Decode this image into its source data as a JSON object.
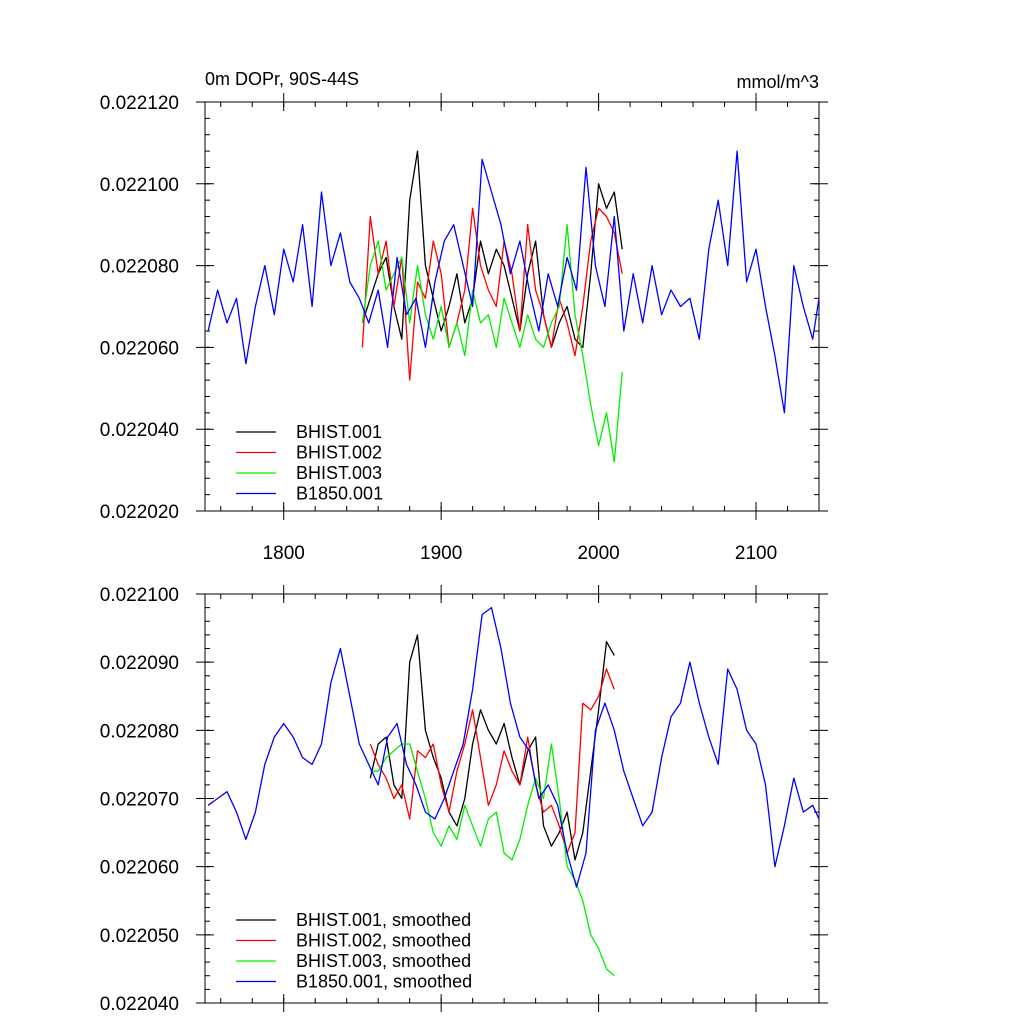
{
  "chart_data": [
    {
      "type": "line",
      "title_left": "0m DOPr, 90S-44S",
      "title_right": "mmol/m^3",
      "xlim": [
        1750,
        2140
      ],
      "ylim": [
        0.02202,
        0.02212
      ],
      "xticks": [
        1800,
        1900,
        2000,
        2100
      ],
      "xtick_labels": [
        "1800",
        "1900",
        "2000",
        "2100"
      ],
      "yticks": [
        0.02202,
        0.02204,
        0.02206,
        0.02208,
        0.0221,
        0.02212
      ],
      "ytick_labels": [
        "0.022020",
        "0.022040",
        "0.022060",
        "0.022080",
        "0.022100",
        "0.022120"
      ],
      "grid": false,
      "legend_position": "bottom-left",
      "series": [
        {
          "name": "BHIST.001",
          "color": "#000000",
          "x": [
            1850,
            1855,
            1860,
            1865,
            1870,
            1875,
            1880,
            1885,
            1890,
            1895,
            1900,
            1905,
            1910,
            1915,
            1920,
            1925,
            1930,
            1935,
            1940,
            1945,
            1950,
            1955,
            1960,
            1965,
            1970,
            1975,
            1980,
            1985,
            1990,
            1995,
            2000,
            2005,
            2010,
            2015
          ],
          "y": [
            0.022066,
            0.022072,
            0.022078,
            0.022082,
            0.02207,
            0.022062,
            0.022096,
            0.022108,
            0.02208,
            0.022072,
            0.022064,
            0.02207,
            0.022078,
            0.022066,
            0.022072,
            0.022086,
            0.022078,
            0.022084,
            0.02208,
            0.022072,
            0.022064,
            0.022078,
            0.022086,
            0.022068,
            0.02206,
            0.022066,
            0.02207,
            0.022062,
            0.02206,
            0.022078,
            0.0221,
            0.022094,
            0.022098,
            0.022084
          ]
        },
        {
          "name": "BHIST.002",
          "color": "#ff0000",
          "x": [
            1850,
            1855,
            1860,
            1865,
            1870,
            1875,
            1880,
            1885,
            1890,
            1895,
            1900,
            1905,
            1910,
            1915,
            1920,
            1925,
            1930,
            1935,
            1940,
            1945,
            1950,
            1955,
            1960,
            1965,
            1970,
            1975,
            1980,
            1985,
            1990,
            1995,
            2000,
            2005,
            2010,
            2015
          ],
          "y": [
            0.02206,
            0.022092,
            0.022078,
            0.022086,
            0.02207,
            0.022082,
            0.022052,
            0.022076,
            0.022072,
            0.022086,
            0.022078,
            0.02206,
            0.022066,
            0.022074,
            0.022094,
            0.02208,
            0.022074,
            0.02207,
            0.022086,
            0.022078,
            0.022064,
            0.02209,
            0.022074,
            0.022068,
            0.02206,
            0.022072,
            0.022066,
            0.022058,
            0.02207,
            0.022086,
            0.022094,
            0.022092,
            0.022088,
            0.022078
          ]
        },
        {
          "name": "BHIST.003",
          "color": "#00ee00",
          "x": [
            1850,
            1855,
            1860,
            1865,
            1870,
            1875,
            1880,
            1885,
            1890,
            1895,
            1900,
            1905,
            1910,
            1915,
            1920,
            1925,
            1930,
            1935,
            1940,
            1945,
            1950,
            1955,
            1960,
            1965,
            1970,
            1975,
            1980,
            1985,
            1990,
            1995,
            2000,
            2005,
            2010,
            2015
          ],
          "y": [
            0.022066,
            0.02208,
            0.022086,
            0.022074,
            0.022078,
            0.022082,
            0.022066,
            0.02208,
            0.022068,
            0.022062,
            0.02207,
            0.02206,
            0.022066,
            0.022058,
            0.022074,
            0.022066,
            0.022068,
            0.02206,
            0.022072,
            0.022066,
            0.02206,
            0.022068,
            0.022062,
            0.02206,
            0.022066,
            0.02207,
            0.02209,
            0.022068,
            0.022058,
            0.022046,
            0.022036,
            0.022044,
            0.022032,
            0.022054
          ]
        },
        {
          "name": "B1850.001",
          "color": "#0000ff",
          "x": [
            1752,
            1758,
            1764,
            1770,
            1776,
            1782,
            1788,
            1794,
            1800,
            1806,
            1812,
            1818,
            1824,
            1830,
            1836,
            1842,
            1848,
            1854,
            1860,
            1866,
            1872,
            1878,
            1884,
            1890,
            1896,
            1902,
            1908,
            1914,
            1920,
            1926,
            1932,
            1938,
            1944,
            1950,
            1956,
            1962,
            1968,
            1974,
            1980,
            1986,
            1992,
            1998,
            2004,
            2010,
            2016,
            2022,
            2028,
            2034,
            2040,
            2046,
            2052,
            2058,
            2064,
            2070,
            2076,
            2082,
            2088,
            2094,
            2100,
            2106,
            2112,
            2118,
            2124,
            2130,
            2136,
            2140
          ],
          "y": [
            0.022064,
            0.022074,
            0.022066,
            0.022072,
            0.022056,
            0.02207,
            0.02208,
            0.022068,
            0.022084,
            0.022076,
            0.02209,
            0.02207,
            0.022098,
            0.02208,
            0.022088,
            0.022076,
            0.022072,
            0.022066,
            0.022074,
            0.02206,
            0.022082,
            0.022068,
            0.022072,
            0.02206,
            0.022076,
            0.022086,
            0.02209,
            0.02208,
            0.02207,
            0.022106,
            0.022098,
            0.02209,
            0.022078,
            0.022086,
            0.022074,
            0.022064,
            0.022078,
            0.02207,
            0.022082,
            0.022074,
            0.022104,
            0.02208,
            0.02207,
            0.022092,
            0.022064,
            0.022078,
            0.022066,
            0.02208,
            0.022068,
            0.022074,
            0.02207,
            0.022072,
            0.022062,
            0.022084,
            0.022096,
            0.02208,
            0.022108,
            0.022076,
            0.022084,
            0.02207,
            0.022058,
            0.022044,
            0.02208,
            0.02207,
            0.022062,
            0.022072
          ]
        }
      ]
    },
    {
      "type": "line",
      "xlim": [
        1750,
        2140
      ],
      "ylim": [
        0.02204,
        0.0221
      ],
      "xticks": [
        1800,
        1900,
        2000,
        2100
      ],
      "yticks": [
        0.02204,
        0.02205,
        0.02206,
        0.02207,
        0.02208,
        0.02209,
        0.0221
      ],
      "ytick_labels": [
        "0.022040",
        "0.022050",
        "0.022060",
        "0.022070",
        "0.022080",
        "0.022090",
        "0.022100"
      ],
      "grid": false,
      "legend_position": "bottom-left",
      "series": [
        {
          "name": "BHIST.001, smoothed",
          "color": "#000000",
          "x": [
            1855,
            1860,
            1865,
            1870,
            1875,
            1880,
            1885,
            1890,
            1895,
            1900,
            1905,
            1910,
            1915,
            1920,
            1925,
            1930,
            1935,
            1940,
            1945,
            1950,
            1955,
            1960,
            1965,
            1970,
            1975,
            1980,
            1985,
            1990,
            1995,
            2000,
            2005,
            2010
          ],
          "y": [
            0.022073,
            0.022078,
            0.022079,
            0.022072,
            0.02207,
            0.02209,
            0.022094,
            0.02208,
            0.022076,
            0.022073,
            0.022068,
            0.022066,
            0.02207,
            0.022078,
            0.022083,
            0.02208,
            0.022078,
            0.022081,
            0.022076,
            0.022072,
            0.022077,
            0.022079,
            0.022066,
            0.022063,
            0.022065,
            0.022068,
            0.022061,
            0.022065,
            0.022074,
            0.022083,
            0.022093,
            0.022091
          ]
        },
        {
          "name": "BHIST.002, smoothed",
          "color": "#ff0000",
          "x": [
            1855,
            1860,
            1865,
            1870,
            1875,
            1880,
            1885,
            1890,
            1895,
            1900,
            1905,
            1910,
            1915,
            1920,
            1925,
            1930,
            1935,
            1940,
            1945,
            1950,
            1955,
            1960,
            1965,
            1970,
            1975,
            1980,
            1985,
            1990,
            1995,
            2000,
            2005,
            2010
          ],
          "y": [
            0.022078,
            0.022075,
            0.022073,
            0.02207,
            0.022072,
            0.022067,
            0.022077,
            0.022076,
            0.022078,
            0.022072,
            0.022068,
            0.022074,
            0.022078,
            0.022083,
            0.022076,
            0.022069,
            0.022072,
            0.022077,
            0.022074,
            0.022072,
            0.022079,
            0.022072,
            0.022068,
            0.022069,
            0.022066,
            0.022062,
            0.022065,
            0.022084,
            0.022083,
            0.022085,
            0.022089,
            0.022086
          ]
        },
        {
          "name": "BHIST.003, smoothed",
          "color": "#00ee00",
          "x": [
            1855,
            1860,
            1865,
            1870,
            1875,
            1880,
            1885,
            1890,
            1895,
            1900,
            1905,
            1910,
            1915,
            1920,
            1925,
            1930,
            1935,
            1940,
            1945,
            1950,
            1955,
            1960,
            1965,
            1970,
            1975,
            1980,
            1985,
            1990,
            1995,
            2000,
            2005,
            2010
          ],
          "y": [
            0.022074,
            0.022074,
            0.022076,
            0.022077,
            0.022078,
            0.022078,
            0.022074,
            0.02207,
            0.022065,
            0.022063,
            0.022066,
            0.022064,
            0.022069,
            0.022066,
            0.022063,
            0.022067,
            0.022068,
            0.022062,
            0.022061,
            0.022064,
            0.022069,
            0.022073,
            0.02207,
            0.022078,
            0.02207,
            0.02206,
            0.022058,
            0.022055,
            0.02205,
            0.022048,
            0.022045,
            0.022044
          ]
        },
        {
          "name": "B1850.001, smoothed",
          "color": "#0000ff",
          "x": [
            1752,
            1758,
            1764,
            1770,
            1776,
            1782,
            1788,
            1794,
            1800,
            1806,
            1812,
            1818,
            1824,
            1830,
            1836,
            1842,
            1848,
            1854,
            1860,
            1866,
            1872,
            1878,
            1884,
            1890,
            1896,
            1902,
            1908,
            1914,
            1920,
            1926,
            1932,
            1938,
            1944,
            1950,
            1956,
            1962,
            1968,
            1974,
            1980,
            1986,
            1992,
            1998,
            2004,
            2010,
            2016,
            2022,
            2028,
            2034,
            2040,
            2046,
            2052,
            2058,
            2064,
            2070,
            2076,
            2082,
            2088,
            2094,
            2100,
            2106,
            2112,
            2118,
            2124,
            2130,
            2136,
            2140
          ],
          "y": [
            0.022069,
            0.02207,
            0.022071,
            0.022068,
            0.022064,
            0.022068,
            0.022075,
            0.022079,
            0.022081,
            0.022079,
            0.022076,
            0.022075,
            0.022078,
            0.022087,
            0.022092,
            0.022085,
            0.022078,
            0.022075,
            0.022072,
            0.022079,
            0.022081,
            0.022075,
            0.022072,
            0.022068,
            0.022067,
            0.02207,
            0.022074,
            0.022078,
            0.022086,
            0.022097,
            0.022098,
            0.022092,
            0.022084,
            0.022079,
            0.022077,
            0.02207,
            0.022072,
            0.022069,
            0.022062,
            0.022057,
            0.022062,
            0.02208,
            0.022084,
            0.02208,
            0.022074,
            0.02207,
            0.022066,
            0.022068,
            0.022076,
            0.022082,
            0.022084,
            0.02209,
            0.022084,
            0.022079,
            0.022075,
            0.022089,
            0.022086,
            0.02208,
            0.022078,
            0.022072,
            0.02206,
            0.022066,
            0.022073,
            0.022068,
            0.022069,
            0.022067
          ]
        }
      ]
    }
  ]
}
